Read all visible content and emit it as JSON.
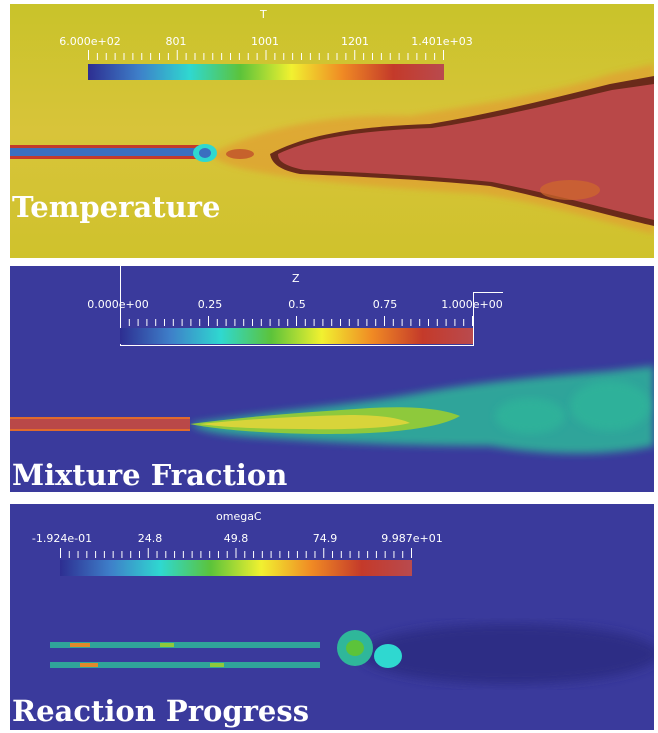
{
  "panels": [
    {
      "label": "Temperature",
      "colorbar_title": "T",
      "ticks": [
        "6.000e+02",
        "801",
        "1001",
        "1201",
        "1.401e+03"
      ]
    },
    {
      "label": "Mixture Fraction",
      "colorbar_title": "Z",
      "ticks": [
        "0.000e+00",
        "0.25",
        "0.5",
        "0.75",
        "1.000e+00"
      ]
    },
    {
      "label": "Reaction Progress",
      "colorbar_title": "omegaC",
      "ticks": [
        "-1.924e-01",
        "24.8",
        "49.8",
        "74.9",
        "9.987e+01"
      ]
    }
  ],
  "colors": {
    "temperature_bg": "#cfc22a",
    "flame_core": "#b94848",
    "field_blue": "#3a3a9c",
    "jet_green": "#2fb79a"
  }
}
